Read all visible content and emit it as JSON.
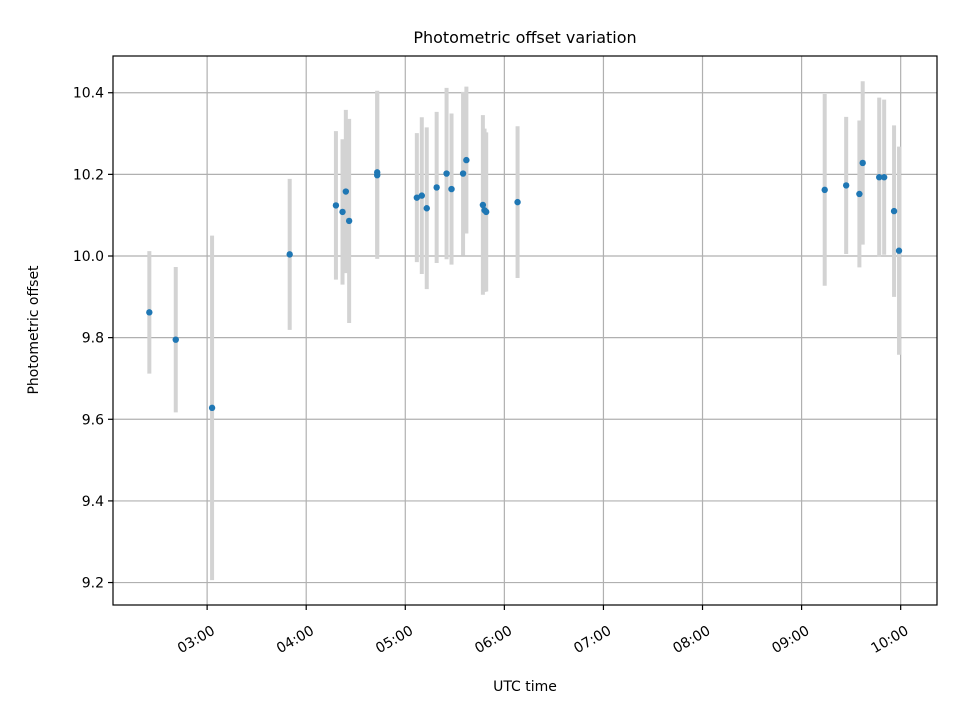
{
  "chart_data": {
    "type": "scatter",
    "title": "Photometric offset variation",
    "xlabel": "UTC time",
    "ylabel": "Photometric offset",
    "x_tick_labels": [
      "03:00",
      "04:00",
      "05:00",
      "06:00",
      "07:00",
      "08:00",
      "09:00",
      "10:00"
    ],
    "x_ticks": [
      "03:00",
      "04:00",
      "05:00",
      "06:00",
      "07:00",
      "08:00",
      "09:00",
      "10:00"
    ],
    "y_ticks": [
      9.2,
      9.4,
      9.6,
      9.8,
      10.0,
      10.2,
      10.4
    ],
    "y_tick_labels": [
      "9.2",
      "9.4",
      "9.6",
      "9.8",
      "10.0",
      "10.2",
      "10.4"
    ],
    "xlim": [
      "02:03",
      "10:22"
    ],
    "ylim": [
      9.145,
      10.49
    ],
    "grid": true,
    "points": [
      {
        "x": "02:25",
        "y": 9.862,
        "yerr": 0.15
      },
      {
        "x": "02:41",
        "y": 9.795,
        "yerr": 0.178
      },
      {
        "x": "03:03",
        "y": 9.628,
        "yerr": 0.422
      },
      {
        "x": "03:50",
        "y": 10.004,
        "yerr": 0.185
      },
      {
        "x": "04:18",
        "y": 10.124,
        "yerr": 0.182
      },
      {
        "x": "04:22",
        "y": 10.108,
        "yerr": 0.178
      },
      {
        "x": "04:24",
        "y": 10.158,
        "yerr": 0.2
      },
      {
        "x": "04:26",
        "y": 10.086,
        "yerr": 0.25
      },
      {
        "x": "04:43",
        "y": 10.205,
        "yerr": 0.2
      },
      {
        "x": "04:43",
        "y": 10.198,
        "yerr": 0.205
      },
      {
        "x": "05:07",
        "y": 10.143,
        "yerr": 0.158
      },
      {
        "x": "05:10",
        "y": 10.148,
        "yerr": 0.192
      },
      {
        "x": "05:13",
        "y": 10.117,
        "yerr": 0.198
      },
      {
        "x": "05:19",
        "y": 10.168,
        "yerr": 0.185
      },
      {
        "x": "05:25",
        "y": 10.202,
        "yerr": 0.21
      },
      {
        "x": "05:28",
        "y": 10.164,
        "yerr": 0.185
      },
      {
        "x": "05:35",
        "y": 10.202,
        "yerr": 0.2
      },
      {
        "x": "05:37",
        "y": 10.235,
        "yerr": 0.18
      },
      {
        "x": "05:47",
        "y": 10.125,
        "yerr": 0.22
      },
      {
        "x": "05:48",
        "y": 10.112,
        "yerr": 0.2
      },
      {
        "x": "05:49",
        "y": 10.108,
        "yerr": 0.195
      },
      {
        "x": "06:08",
        "y": 10.132,
        "yerr": 0.186
      },
      {
        "x": "09:14",
        "y": 10.162,
        "yerr": 0.235
      },
      {
        "x": "09:27",
        "y": 10.173,
        "yerr": 0.168
      },
      {
        "x": "09:35",
        "y": 10.152,
        "yerr": 0.18
      },
      {
        "x": "09:37",
        "y": 10.228,
        "yerr": 0.2
      },
      {
        "x": "09:47",
        "y": 10.193,
        "yerr": 0.195
      },
      {
        "x": "09:50",
        "y": 10.193,
        "yerr": 0.19
      },
      {
        "x": "09:56",
        "y": 10.11,
        "yerr": 0.21
      },
      {
        "x": "09:59",
        "y": 10.013,
        "yerr": 0.255
      }
    ],
    "marker_color": "#1f77b4",
    "errorbar_color": "#d3d3d3",
    "grid_color": "#b0b0b0"
  }
}
